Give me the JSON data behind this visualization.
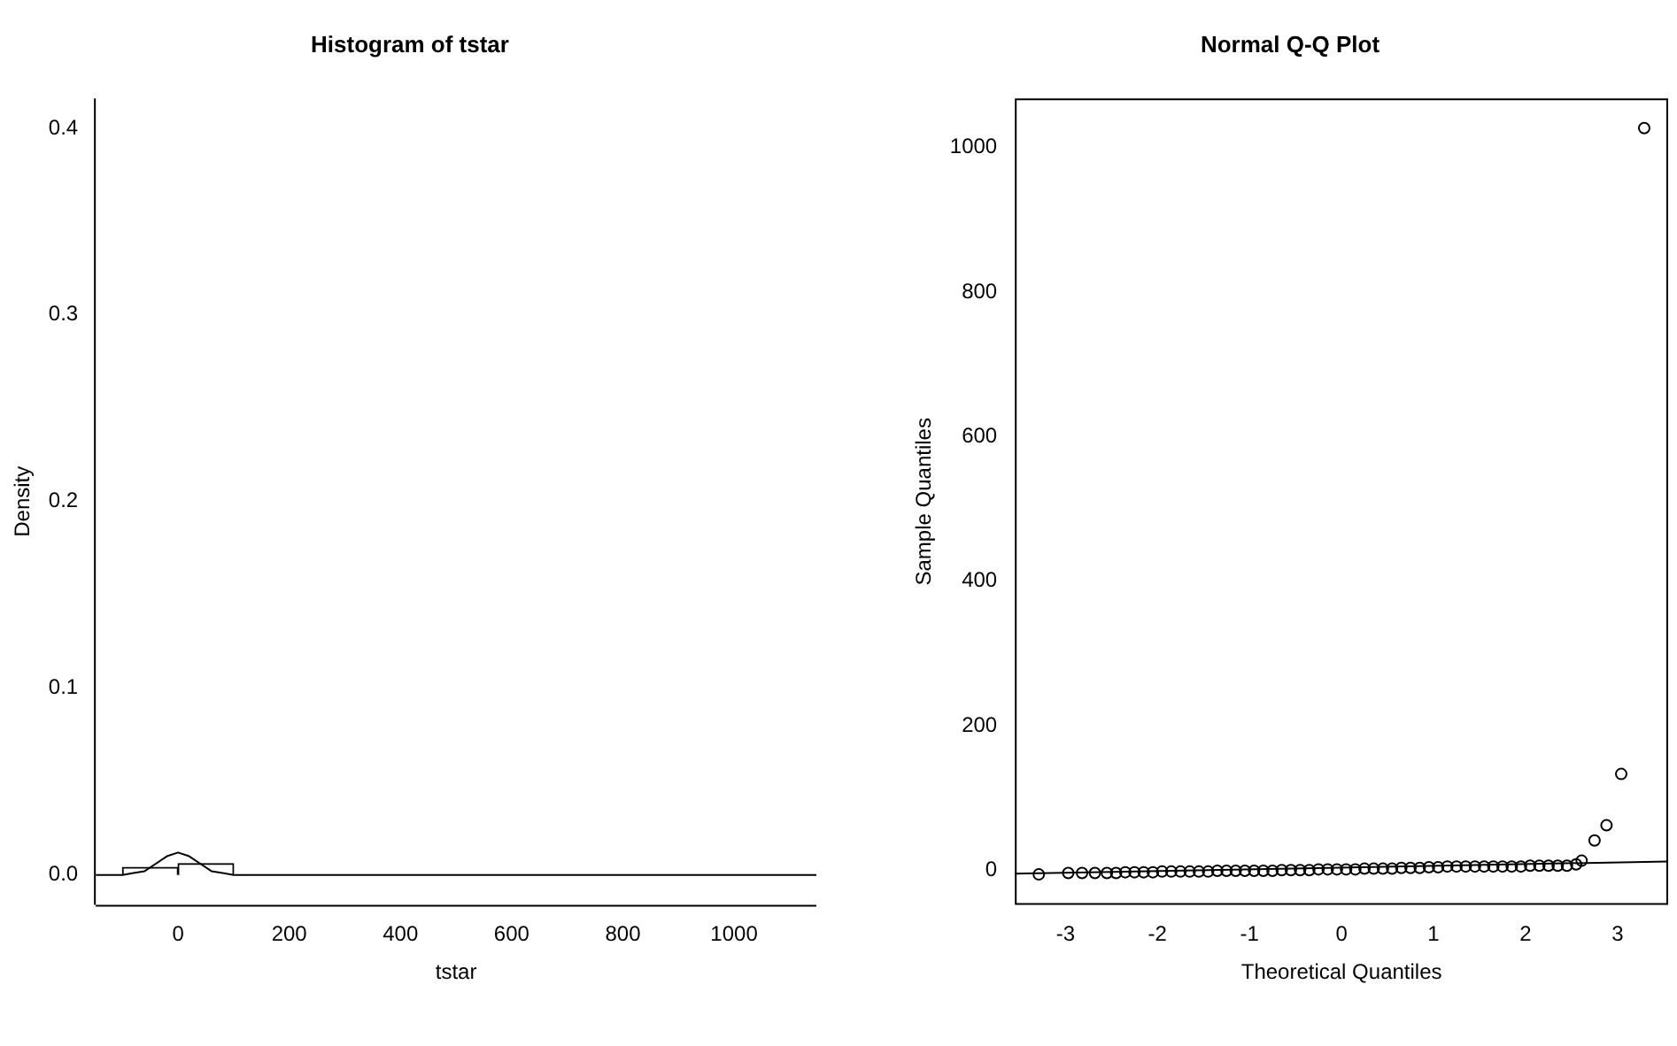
{
  "chart_data": [
    {
      "type": "histogram",
      "title": "Histogram of tstar",
      "xlabel": "tstar",
      "ylabel": "Density",
      "bins": [
        -100,
        0,
        100,
        200,
        300,
        400,
        500,
        600,
        700,
        800,
        900,
        1000,
        1100
      ],
      "values": [
        0.004,
        0.006,
        0,
        0,
        0,
        0,
        0,
        0,
        0,
        0,
        0,
        0
      ],
      "color": "#ffffff",
      "series": [
        {
          "type": "line",
          "color": "#000000",
          "x": [
            -148,
            -100,
            -80,
            -60,
            -40,
            -20,
            0,
            20,
            40,
            60,
            80,
            100,
            200,
            1148
          ],
          "values": [
            0,
            0,
            0.001,
            0.002,
            0.006,
            0.01,
            0.012,
            0.01,
            0.006,
            0.002,
            0.001,
            0,
            0,
            0
          ]
        }
      ],
      "xlim": [
        -148,
        1148
      ],
      "ylim": [
        -0.016,
        0.416
      ],
      "xticks": [
        0,
        200,
        400,
        600,
        800,
        1000
      ],
      "yticks": [
        {
          "value": 0,
          "label": "0.0"
        },
        {
          "value": 0.1,
          "label": "0.1"
        },
        {
          "value": 0.2,
          "label": "0.2"
        },
        {
          "value": 0.3,
          "label": "0.3"
        },
        {
          "value": 0.4,
          "label": "0.4"
        }
      ]
    },
    {
      "type": "scatter",
      "title": "Normal Q-Q Plot",
      "xlabel": "Theoretical Quantiles",
      "ylabel": "Sample Quantiles",
      "series": [
        {
          "type": "scatter",
          "color": "#000000",
          "marker": "circle",
          "x": [
            -3.29,
            -2.97,
            -2.82,
            -2.68,
            -2.55,
            -2.45,
            -2.35,
            -2.25,
            -2.15,
            -2.05,
            -1.95,
            -1.85,
            -1.75,
            -1.65,
            -1.55,
            -1.45,
            -1.35,
            -1.25,
            -1.15,
            -1.05,
            -0.95,
            -0.85,
            -0.75,
            -0.65,
            -0.55,
            -0.45,
            -0.35,
            -0.25,
            -0.15,
            -0.05,
            0.05,
            0.15,
            0.25,
            0.35,
            0.45,
            0.55,
            0.65,
            0.75,
            0.85,
            0.95,
            1.05,
            1.15,
            1.25,
            1.35,
            1.45,
            1.55,
            1.65,
            1.75,
            1.85,
            1.95,
            2.05,
            2.15,
            2.25,
            2.35,
            2.45,
            2.55,
            2.61,
            2.75,
            2.88,
            3.04,
            3.29
          ],
          "values": [
            -6,
            -4,
            -4,
            -4,
            -4,
            -4,
            -3,
            -3,
            -3,
            -3,
            -2,
            -2,
            -2,
            -2,
            -2,
            -2,
            -1,
            -1,
            -1,
            -1,
            -1,
            -1,
            -1,
            0,
            0,
            0,
            0,
            1,
            1,
            1,
            1,
            1,
            2,
            2,
            2,
            2,
            3,
            3,
            3,
            4,
            4,
            5,
            5,
            5,
            5,
            5,
            5,
            5,
            5,
            5,
            6,
            6,
            6,
            6,
            6,
            8,
            13,
            41,
            62,
            133,
            1027
          ]
        },
        {
          "type": "line",
          "color": "#000000",
          "x": [
            -3.55,
            3.55
          ],
          "values": [
            -5,
            12
          ]
        }
      ],
      "xlim": [
        -3.55,
        3.55
      ],
      "ylim": [
        -48,
        1068
      ],
      "xticks": [
        -3,
        -2,
        -1,
        0,
        1,
        2,
        3
      ],
      "yticks": [
        0,
        200,
        400,
        600,
        800,
        1000
      ]
    }
  ]
}
